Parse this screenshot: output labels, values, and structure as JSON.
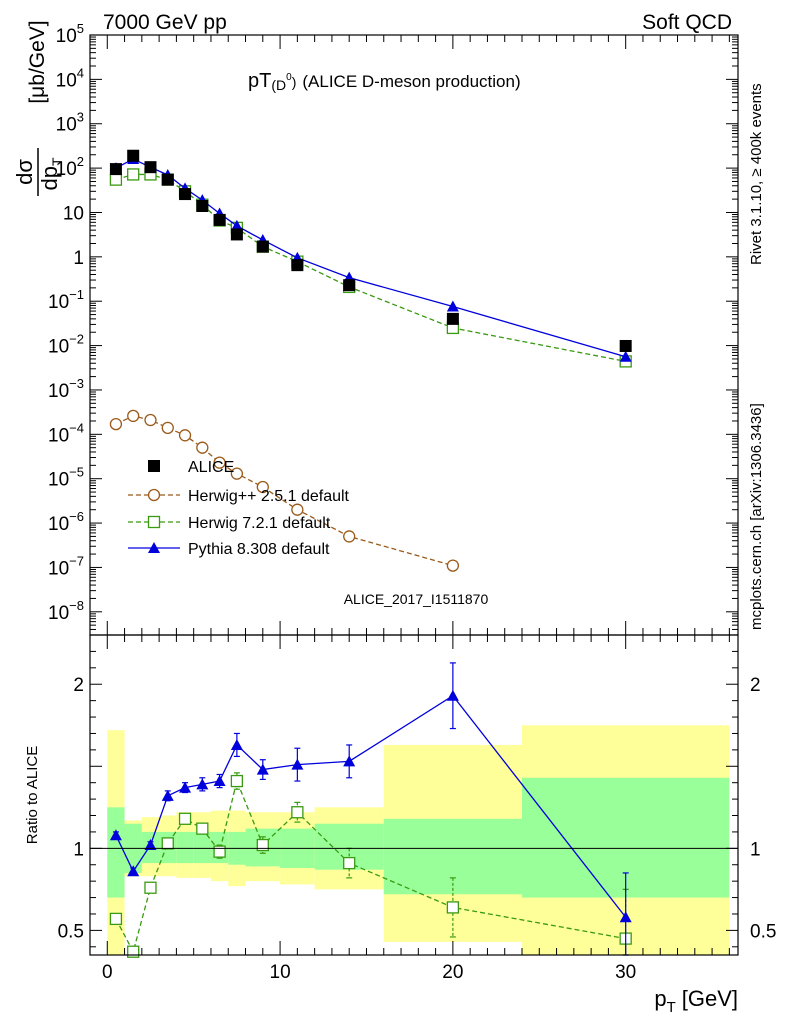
{
  "header": {
    "left": "7000 GeV pp",
    "right": "Soft QCD"
  },
  "side_labels": {
    "rivet": "Rivet 3.1.10, ≥ 400k events",
    "mcplots": "mcplots.cern.ch [arXiv:1306.3436]"
  },
  "chart_data": [
    {
      "type": "line",
      "panel": "main",
      "title": "pT(D⁰) (ALICE D-meson production)",
      "title_main": "pT",
      "title_sub": "(D",
      "title_sup": "0",
      "title_close": ")",
      "title_rest": "(ALICE D-meson production)",
      "analysis_id": "ALICE_2017_I1511870",
      "ylabel": "dσ/dp_T [μb/GeV]",
      "ylabel_num": "dσ",
      "ylabel_den": "dp",
      "ylabel_den_sub": "T",
      "ylabel_units": "[μb/GeV]",
      "yscale": "log",
      "ylim": [
        3e-09,
        100000.0
      ],
      "xlim": [
        -1,
        36.5
      ],
      "y_ticks": [
        {
          "v": 100000.0,
          "label": "10",
          "sup": "5"
        },
        {
          "v": 10000.0,
          "label": "10",
          "sup": "4"
        },
        {
          "v": 1000.0,
          "label": "10",
          "sup": "3"
        },
        {
          "v": 100.0,
          "label": "10",
          "sup": "2"
        },
        {
          "v": 10,
          "label": "10",
          "sup": ""
        },
        {
          "v": 1,
          "label": "1",
          "sup": ""
        },
        {
          "v": 0.1,
          "label": "10",
          "sup": "−1"
        },
        {
          "v": 0.01,
          "label": "10",
          "sup": "−2"
        },
        {
          "v": 0.001,
          "label": "10",
          "sup": "−3"
        },
        {
          "v": 0.0001,
          "label": "10",
          "sup": "−4"
        },
        {
          "v": 1e-05,
          "label": "10",
          "sup": "−5"
        },
        {
          "v": 1e-06,
          "label": "10",
          "sup": "−6"
        },
        {
          "v": 1e-07,
          "label": "10",
          "sup": "−7"
        },
        {
          "v": 1e-08,
          "label": "10",
          "sup": "−8"
        }
      ],
      "legend": {
        "placement": "lower-left"
      },
      "series": [
        {
          "name": "ALICE",
          "style": "data",
          "color": "#000000",
          "x": [
            0.5,
            1.5,
            2.5,
            3.5,
            4.5,
            5.5,
            6.5,
            7.5,
            9,
            11,
            14,
            20,
            30
          ],
          "y": [
            95,
            190,
            105,
            55,
            26,
            14,
            6.8,
            3.2,
            1.7,
            0.65,
            0.23,
            0.04,
            0.0098
          ]
        },
        {
          "name": "Herwig++ 2.5.1 default",
          "style": "open-circle-dashed",
          "color": "#9b5a1a",
          "x": [
            0.5,
            1.5,
            2.5,
            3.5,
            4.5,
            5.5,
            6.5,
            7.5,
            9,
            11,
            14,
            20
          ],
          "y": [
            0.00017,
            0.00026,
            0.00021,
            0.00014,
            9.5e-05,
            5e-05,
            2.3e-05,
            1.3e-05,
            6.5e-06,
            2e-06,
            5e-07,
            1.1e-07
          ]
        },
        {
          "name": "Herwig 7.2.1 default",
          "style": "open-square-dashed",
          "color": "#3a9a12",
          "x": [
            0.5,
            1.5,
            2.5,
            3.5,
            4.5,
            5.5,
            6.5,
            7.5,
            9,
            11,
            14,
            20,
            30
          ],
          "y": [
            55,
            72,
            72,
            55,
            30,
            15,
            6.6,
            4.5,
            1.7,
            0.78,
            0.21,
            0.025,
            0.0044
          ]
        },
        {
          "name": "Pythia 8.308 default",
          "style": "filled-triangle-solid",
          "color": "#0000dd",
          "x": [
            0.5,
            1.5,
            2.5,
            3.5,
            4.5,
            5.5,
            6.5,
            7.5,
            9,
            11,
            14,
            20,
            30
          ],
          "y": [
            100,
            160,
            105,
            70,
            35,
            19,
            9.5,
            5,
            2.4,
            0.95,
            0.34,
            0.076,
            0.0056
          ]
        }
      ]
    },
    {
      "type": "line",
      "panel": "ratio",
      "ylabel": "Ratio to ALICE",
      "xlabel": "p_T [GeV]",
      "xlabel_main": "p",
      "xlabel_sub": "T",
      "xlabel_units": "[GeV]",
      "ylim": [
        0.35,
        2.3
      ],
      "xlim": [
        -1,
        36.5
      ],
      "y_ticks": [
        {
          "v": 0.5,
          "label": "0.5"
        },
        {
          "v": 1,
          "label": "1"
        },
        {
          "v": 2,
          "label": "2"
        }
      ],
      "x_ticks": [
        {
          "v": 0,
          "label": "0"
        },
        {
          "v": 10,
          "label": "10"
        },
        {
          "v": 20,
          "label": "20"
        },
        {
          "v": 30,
          "label": "30"
        }
      ],
      "bands": [
        {
          "x0": 0,
          "x1": 1,
          "stat_lo": 0.7,
          "stat_hi": 1.25,
          "tot_lo": 0.0,
          "tot_hi": 1.72
        },
        {
          "x0": 1,
          "x1": 2,
          "stat_lo": 0.85,
          "stat_hi": 1.15,
          "tot_lo": 0.83,
          "tot_hi": 1.17
        },
        {
          "x0": 2,
          "x1": 3,
          "stat_lo": 0.91,
          "stat_hi": 1.1,
          "tot_lo": 0.83,
          "tot_hi": 1.19
        },
        {
          "x0": 3,
          "x1": 4,
          "stat_lo": 0.91,
          "stat_hi": 1.1,
          "tot_lo": 0.83,
          "tot_hi": 1.2
        },
        {
          "x0": 4,
          "x1": 5,
          "stat_lo": 0.91,
          "stat_hi": 1.1,
          "tot_lo": 0.82,
          "tot_hi": 1.22
        },
        {
          "x0": 5,
          "x1": 6,
          "stat_lo": 0.91,
          "stat_hi": 1.1,
          "tot_lo": 0.82,
          "tot_hi": 1.22
        },
        {
          "x0": 6,
          "x1": 7,
          "stat_lo": 0.91,
          "stat_hi": 1.1,
          "tot_lo": 0.8,
          "tot_hi": 1.23
        },
        {
          "x0": 7,
          "x1": 8,
          "stat_lo": 0.9,
          "stat_hi": 1.1,
          "tot_lo": 0.77,
          "tot_hi": 1.23
        },
        {
          "x0": 8,
          "x1": 10,
          "stat_lo": 0.89,
          "stat_hi": 1.12,
          "tot_lo": 0.8,
          "tot_hi": 1.22
        },
        {
          "x0": 10,
          "x1": 12,
          "stat_lo": 0.88,
          "stat_hi": 1.12,
          "tot_lo": 0.78,
          "tot_hi": 1.22
        },
        {
          "x0": 12,
          "x1": 16,
          "stat_lo": 0.87,
          "stat_hi": 1.15,
          "tot_lo": 0.75,
          "tot_hi": 1.25
        },
        {
          "x0": 16,
          "x1": 24,
          "stat_lo": 0.72,
          "stat_hi": 1.18,
          "tot_lo": 0.43,
          "tot_hi": 1.63
        },
        {
          "x0": 24,
          "x1": 36,
          "stat_lo": 0.7,
          "stat_hi": 1.43,
          "tot_lo": 0.35,
          "tot_hi": 1.75
        }
      ],
      "series": [
        {
          "name": "Herwig 7.2.1 default",
          "style": "open-square-dashed",
          "color": "#3a9a12",
          "x": [
            0.5,
            1.5,
            2.5,
            3.5,
            4.5,
            5.5,
            6.5,
            7.5,
            9,
            11,
            14,
            20,
            30
          ],
          "y": [
            0.57,
            0.37,
            0.76,
            1.03,
            1.18,
            1.12,
            0.98,
            1.41,
            1.02,
            1.22,
            0.91,
            0.64,
            0.45
          ],
          "err": [
            0.02,
            0.02,
            0.02,
            0.03,
            0.03,
            0.03,
            0.04,
            0.05,
            0.05,
            0.06,
            0.09,
            0.18,
            0.3
          ]
        },
        {
          "name": "Pythia 8.308 default",
          "style": "filled-triangle-solid",
          "color": "#0000dd",
          "x": [
            0.5,
            1.5,
            2.5,
            3.5,
            4.5,
            5.5,
            6.5,
            7.5,
            9,
            11,
            14,
            20,
            30
          ],
          "y": [
            1.08,
            0.86,
            1.02,
            1.32,
            1.37,
            1.39,
            1.41,
            1.63,
            1.48,
            1.51,
            1.53,
            1.93,
            0.58
          ],
          "err": [
            0.02,
            0.02,
            0.02,
            0.03,
            0.03,
            0.04,
            0.04,
            0.07,
            0.06,
            0.1,
            0.1,
            0.2,
            0.27
          ]
        }
      ]
    }
  ]
}
